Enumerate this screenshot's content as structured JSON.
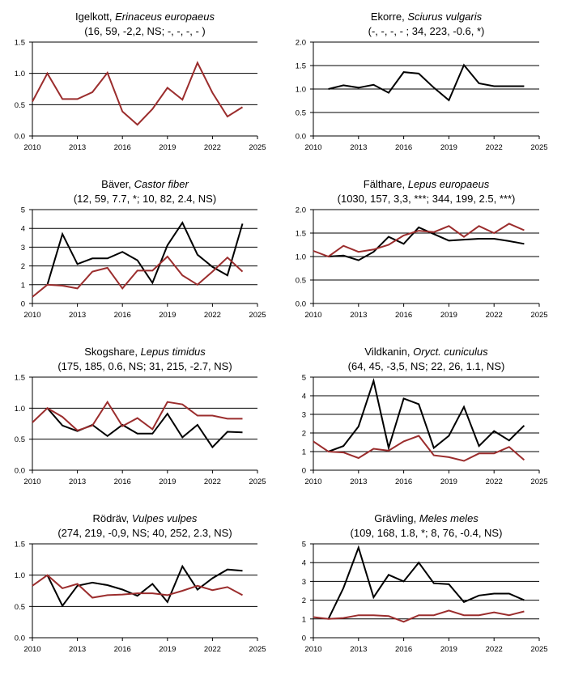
{
  "colors": {
    "series_black": "#000000",
    "series_red": "#9b2d2d",
    "axis": "#000000",
    "grid": "#000000"
  },
  "chart_data": [
    {
      "type": "line",
      "title_common": "Igelkott, ",
      "title_latin": "Erinaceus europaeus",
      "subtitle": "(16, 59, -2,2, NS; -, -, -, - )",
      "xlim": [
        2010,
        2025
      ],
      "xticks": [
        2010,
        2013,
        2016,
        2019,
        2022,
        2025
      ],
      "ylim": [
        0,
        1.5
      ],
      "yticks": [
        "0.0",
        "0.5",
        "1.0",
        "1.5"
      ],
      "series": [
        {
          "name": "red",
          "color": "#9b2d2d",
          "x": [
            2010,
            2011,
            2012,
            2013,
            2014,
            2015,
            2016,
            2017,
            2018,
            2019,
            2020,
            2021,
            2022,
            2023,
            2024
          ],
          "values": [
            0.55,
            1.0,
            0.59,
            0.59,
            0.7,
            1.01,
            0.39,
            0.18,
            0.43,
            0.77,
            0.58,
            1.17,
            0.69,
            0.31,
            0.46
          ]
        }
      ]
    },
    {
      "type": "line",
      "title_common": "Ekorre, ",
      "title_latin": "Sciurus vulgaris",
      "subtitle": "(-, -, -, - ; 34, 223, -0.6, *)",
      "xlim": [
        2010,
        2025
      ],
      "xticks": [
        2010,
        2013,
        2016,
        2019,
        2022,
        2025
      ],
      "ylim": [
        0,
        2.0
      ],
      "yticks": [
        "0.0",
        "0.5",
        "1.0",
        "1.5",
        "2.0"
      ],
      "series": [
        {
          "name": "black",
          "color": "#000000",
          "x": [
            2011,
            2012,
            2013,
            2014,
            2015,
            2016,
            2017,
            2018,
            2019,
            2020,
            2021,
            2022,
            2023,
            2024
          ],
          "values": [
            1.0,
            1.08,
            1.03,
            1.09,
            0.92,
            1.36,
            1.33,
            1.03,
            0.76,
            1.51,
            1.12,
            1.06,
            1.06,
            1.06
          ]
        }
      ]
    },
    {
      "type": "line",
      "title_common": "Bäver, ",
      "title_latin": "Castor fiber",
      "subtitle": "(12, 59, 7.7, *; 10, 82, 2.4, NS)",
      "xlim": [
        2010,
        2025
      ],
      "xticks": [
        2010,
        2013,
        2016,
        2019,
        2022,
        2025
      ],
      "ylim": [
        0,
        5
      ],
      "yticks": [
        "0",
        "1",
        "2",
        "3",
        "4",
        "5"
      ],
      "series": [
        {
          "name": "black",
          "color": "#000000",
          "x": [
            2011,
            2012,
            2013,
            2014,
            2015,
            2016,
            2017,
            2018,
            2019,
            2020,
            2021,
            2022,
            2023,
            2024
          ],
          "values": [
            1.0,
            3.7,
            2.1,
            2.4,
            2.4,
            2.75,
            2.3,
            1.1,
            3.1,
            4.3,
            2.6,
            1.95,
            1.5,
            4.25
          ]
        },
        {
          "name": "red",
          "color": "#9b2d2d",
          "x": [
            2010,
            2011,
            2012,
            2013,
            2014,
            2015,
            2016,
            2017,
            2018,
            2019,
            2020,
            2021,
            2022,
            2023,
            2024
          ],
          "values": [
            0.35,
            1.0,
            0.95,
            0.8,
            1.7,
            1.9,
            0.8,
            1.75,
            1.75,
            2.5,
            1.5,
            1.0,
            1.7,
            2.45,
            1.7
          ]
        }
      ]
    },
    {
      "type": "line",
      "title_common": "Fälthare, ",
      "title_latin": "Lepus europaeus",
      "subtitle": "(1030, 157, 3,3, ***; 344, 199, 2.5, ***)",
      "xlim": [
        2010,
        2025
      ],
      "xticks": [
        2010,
        2013,
        2016,
        2019,
        2022,
        2025
      ],
      "ylim": [
        0,
        2.0
      ],
      "yticks": [
        "0.0",
        "0.5",
        "1.0",
        "1.5",
        "2.0"
      ],
      "series": [
        {
          "name": "black",
          "color": "#000000",
          "x": [
            2011,
            2012,
            2013,
            2014,
            2015,
            2016,
            2017,
            2018,
            2019,
            2020,
            2021,
            2022,
            2023,
            2024
          ],
          "values": [
            1.0,
            1.02,
            0.92,
            1.1,
            1.42,
            1.27,
            1.62,
            1.48,
            1.34,
            1.36,
            1.38,
            1.38,
            1.33,
            1.27
          ]
        },
        {
          "name": "red",
          "color": "#9b2d2d",
          "x": [
            2010,
            2011,
            2012,
            2013,
            2014,
            2015,
            2016,
            2017,
            2018,
            2019,
            2020,
            2021,
            2022,
            2023,
            2024
          ],
          "values": [
            1.12,
            1.0,
            1.23,
            1.1,
            1.15,
            1.25,
            1.45,
            1.55,
            1.52,
            1.65,
            1.42,
            1.65,
            1.5,
            1.7,
            1.56
          ]
        }
      ]
    },
    {
      "type": "line",
      "title_common": "Skogshare, ",
      "title_latin": "Lepus timidus",
      "subtitle": "(175, 185, 0.6, NS; 31, 215, -2.7, NS)",
      "xlim": [
        2010,
        2025
      ],
      "xticks": [
        2010,
        2013,
        2016,
        2019,
        2022,
        2025
      ],
      "ylim": [
        0,
        1.5
      ],
      "yticks": [
        "0.0",
        "0.5",
        "1.0",
        "1.5"
      ],
      "series": [
        {
          "name": "black",
          "color": "#000000",
          "x": [
            2011,
            2012,
            2013,
            2014,
            2015,
            2016,
            2017,
            2018,
            2019,
            2020,
            2021,
            2022,
            2023,
            2024
          ],
          "values": [
            1.0,
            0.72,
            0.63,
            0.73,
            0.55,
            0.73,
            0.59,
            0.59,
            0.91,
            0.53,
            0.73,
            0.37,
            0.62,
            0.61
          ]
        },
        {
          "name": "red",
          "color": "#9b2d2d",
          "x": [
            2010,
            2011,
            2012,
            2013,
            2014,
            2015,
            2016,
            2017,
            2018,
            2019,
            2020,
            2021,
            2022,
            2023,
            2024
          ],
          "values": [
            0.77,
            1.0,
            0.86,
            0.64,
            0.72,
            1.1,
            0.71,
            0.84,
            0.66,
            1.1,
            1.06,
            0.88,
            0.88,
            0.83,
            0.83
          ]
        }
      ]
    },
    {
      "type": "line",
      "title_common": "Vildkanin, ",
      "title_latin": "Oryct. cuniculus",
      "subtitle": "(64, 45, -3,5, NS; 22, 26, 1.1, NS)",
      "xlim": [
        2010,
        2025
      ],
      "xticks": [
        2010,
        2013,
        2016,
        2019,
        2022,
        2025
      ],
      "ylim": [
        0,
        5
      ],
      "yticks": [
        "0",
        "1",
        "2",
        "3",
        "4",
        "5"
      ],
      "series": [
        {
          "name": "black",
          "color": "#000000",
          "x": [
            2011,
            2012,
            2013,
            2014,
            2015,
            2016,
            2017,
            2018,
            2019,
            2020,
            2021,
            2022,
            2023,
            2024
          ],
          "values": [
            1.0,
            1.3,
            2.35,
            4.8,
            1.2,
            3.85,
            3.55,
            1.2,
            1.85,
            3.4,
            1.3,
            2.1,
            1.6,
            2.4
          ]
        },
        {
          "name": "red",
          "color": "#9b2d2d",
          "x": [
            2010,
            2011,
            2012,
            2013,
            2014,
            2015,
            2016,
            2017,
            2018,
            2019,
            2020,
            2021,
            2022,
            2023,
            2024
          ],
          "values": [
            1.55,
            1.0,
            0.95,
            0.65,
            1.15,
            1.05,
            1.55,
            1.85,
            0.8,
            0.7,
            0.5,
            0.9,
            0.9,
            1.25,
            0.55
          ]
        }
      ]
    },
    {
      "type": "line",
      "title_common": "Rödräv, ",
      "title_latin": "Vulpes vulpes",
      "subtitle": "(274, 219, -0,9, NS; 40, 252, 2.3, NS)",
      "xlim": [
        2010,
        2025
      ],
      "xticks": [
        2010,
        2013,
        2016,
        2019,
        2022,
        2025
      ],
      "ylim": [
        0,
        1.5
      ],
      "yticks": [
        "0.0",
        "0.5",
        "1.0",
        "1.5"
      ],
      "series": [
        {
          "name": "black",
          "color": "#000000",
          "x": [
            2011,
            2012,
            2013,
            2014,
            2015,
            2016,
            2017,
            2018,
            2019,
            2020,
            2021,
            2022,
            2023,
            2024
          ],
          "values": [
            1.0,
            0.51,
            0.83,
            0.88,
            0.84,
            0.77,
            0.67,
            0.86,
            0.57,
            1.14,
            0.77,
            0.95,
            1.09,
            1.07
          ]
        },
        {
          "name": "red",
          "color": "#9b2d2d",
          "x": [
            2010,
            2011,
            2012,
            2013,
            2014,
            2015,
            2016,
            2017,
            2018,
            2019,
            2020,
            2021,
            2022,
            2023,
            2024
          ],
          "values": [
            0.83,
            1.0,
            0.79,
            0.86,
            0.64,
            0.68,
            0.69,
            0.71,
            0.71,
            0.68,
            0.75,
            0.83,
            0.76,
            0.81,
            0.68
          ]
        }
      ]
    },
    {
      "type": "line",
      "title_common": "Grävling, ",
      "title_latin": "Meles meles",
      "subtitle": "(109, 168, 1.8, *; 8, 76, -0.4, NS)",
      "xlim": [
        2010,
        2025
      ],
      "xticks": [
        2010,
        2013,
        2016,
        2019,
        2022,
        2025
      ],
      "ylim": [
        0,
        5
      ],
      "yticks": [
        "0",
        "1",
        "2",
        "3",
        "4",
        "5"
      ],
      "series": [
        {
          "name": "black",
          "color": "#000000",
          "x": [
            2011,
            2012,
            2013,
            2014,
            2015,
            2016,
            2017,
            2018,
            2019,
            2020,
            2021,
            2022,
            2023,
            2024
          ],
          "values": [
            1.0,
            2.65,
            4.8,
            2.15,
            3.35,
            3.0,
            4.0,
            2.9,
            2.85,
            1.9,
            2.25,
            2.35,
            2.35,
            2.0
          ]
        },
        {
          "name": "red",
          "color": "#9b2d2d",
          "x": [
            2010,
            2011,
            2012,
            2013,
            2014,
            2015,
            2016,
            2017,
            2018,
            2019,
            2020,
            2021,
            2022,
            2023,
            2024
          ],
          "values": [
            1.1,
            1.0,
            1.05,
            1.2,
            1.2,
            1.15,
            0.85,
            1.2,
            1.2,
            1.45,
            1.2,
            1.2,
            1.35,
            1.2,
            1.4
          ]
        }
      ]
    }
  ]
}
